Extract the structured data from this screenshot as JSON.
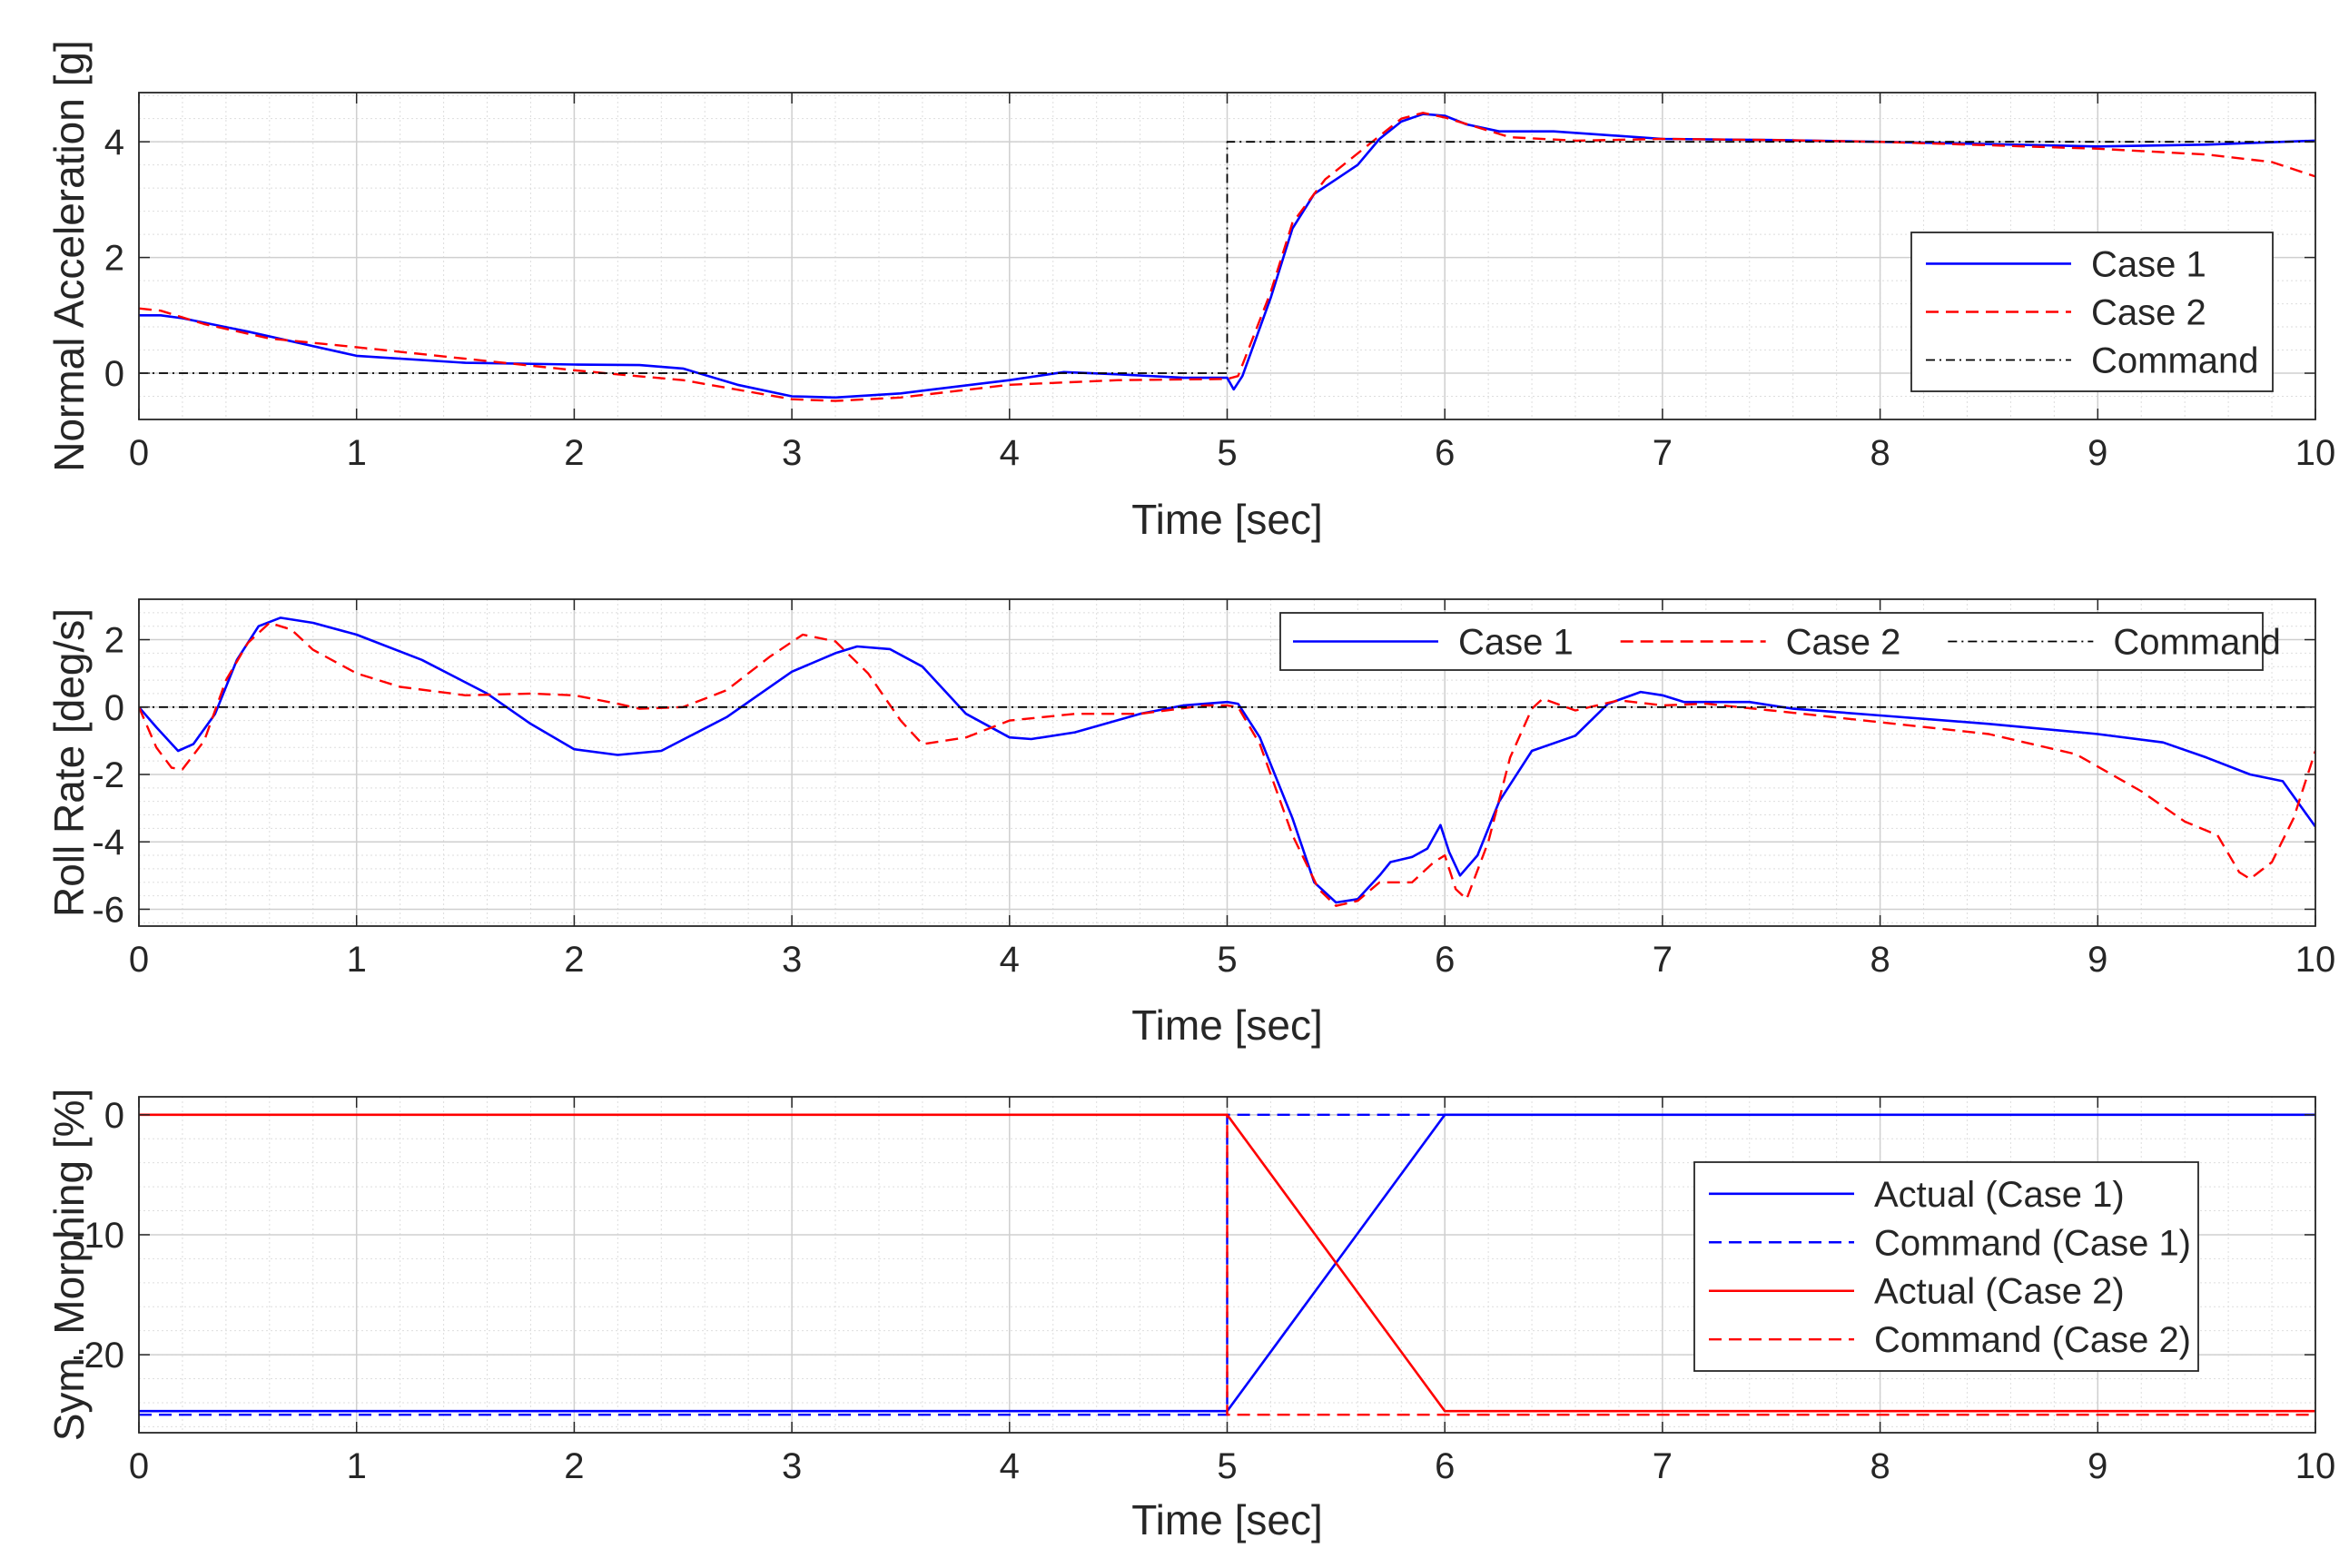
{
  "chart_data": [
    {
      "type": "line",
      "xlabel": "Time [sec]",
      "ylabel": "Normal Acceleration [g]",
      "xlim": [
        0,
        10
      ],
      "ylim": [
        -0.8,
        4.85
      ],
      "xticks": [
        "0",
        "1",
        "2",
        "3",
        "4",
        "5",
        "6",
        "7",
        "8",
        "9",
        "10"
      ],
      "yticks": [
        "0",
        "2",
        "4"
      ],
      "ytick_values": [
        0,
        2,
        4
      ],
      "grid": true,
      "legend_position": "right",
      "legend_layout": "vertical",
      "series": [
        {
          "name": "Case 1",
          "color": "#0000ff",
          "style": "solid",
          "points": [
            [
              0,
              1
            ],
            [
              0.1,
              1
            ],
            [
              0.2,
              0.95
            ],
            [
              0.5,
              0.72
            ],
            [
              1,
              0.3
            ],
            [
              1.5,
              0.18
            ],
            [
              2,
              0.15
            ],
            [
              2.3,
              0.14
            ],
            [
              2.5,
              0.08
            ],
            [
              2.75,
              -0.2
            ],
            [
              3,
              -0.4
            ],
            [
              3.2,
              -0.42
            ],
            [
              3.5,
              -0.35
            ],
            [
              4,
              -0.12
            ],
            [
              4.25,
              0.02
            ],
            [
              4.5,
              -0.02
            ],
            [
              4.8,
              -0.08
            ],
            [
              5,
              -0.08
            ],
            [
              5.03,
              -0.28
            ],
            [
              5.07,
              -0.05
            ],
            [
              5.2,
              1.3
            ],
            [
              5.3,
              2.5
            ],
            [
              5.4,
              3.1
            ],
            [
              5.5,
              3.35
            ],
            [
              5.6,
              3.6
            ],
            [
              5.7,
              4.05
            ],
            [
              5.8,
              4.35
            ],
            [
              5.9,
              4.48
            ],
            [
              6,
              4.45
            ],
            [
              6.1,
              4.3
            ],
            [
              6.25,
              4.18
            ],
            [
              6.5,
              4.18
            ],
            [
              7,
              4.05
            ],
            [
              7.5,
              4.03
            ],
            [
              8,
              4.0
            ],
            [
              9,
              3.92
            ],
            [
              9.5,
              3.95
            ],
            [
              10,
              4.02
            ]
          ]
        },
        {
          "name": "Case 2",
          "color": "#ff0000",
          "style": "dashed",
          "points": [
            [
              0,
              1.12
            ],
            [
              0.1,
              1.08
            ],
            [
              0.3,
              0.85
            ],
            [
              0.6,
              0.6
            ],
            [
              1,
              0.45
            ],
            [
              1.5,
              0.25
            ],
            [
              2,
              0.05
            ],
            [
              2.2,
              -0.02
            ],
            [
              2.5,
              -0.12
            ],
            [
              3,
              -0.45
            ],
            [
              3.2,
              -0.48
            ],
            [
              3.5,
              -0.42
            ],
            [
              4,
              -0.2
            ],
            [
              4.5,
              -0.12
            ],
            [
              5,
              -0.1
            ],
            [
              5.05,
              -0.05
            ],
            [
              5.2,
              1.4
            ],
            [
              5.3,
              2.6
            ],
            [
              5.45,
              3.35
            ],
            [
              5.6,
              3.8
            ],
            [
              5.8,
              4.4
            ],
            [
              5.9,
              4.5
            ],
            [
              6,
              4.42
            ],
            [
              6.3,
              4.08
            ],
            [
              6.6,
              4.02
            ],
            [
              7,
              4.05
            ],
            [
              7.5,
              4.03
            ],
            [
              8,
              4.0
            ],
            [
              9,
              3.88
            ],
            [
              9.5,
              3.78
            ],
            [
              9.8,
              3.65
            ],
            [
              10,
              3.4
            ]
          ]
        },
        {
          "name": "Command",
          "color": "#000000",
          "style": "dashdot",
          "points": [
            [
              0,
              0
            ],
            [
              5,
              0
            ],
            [
              5,
              4
            ],
            [
              10,
              4
            ]
          ]
        }
      ]
    },
    {
      "type": "line",
      "xlabel": "Time [sec]",
      "ylabel": "Roll Rate [deg/s]",
      "xlim": [
        0,
        10
      ],
      "ylim": [
        -6.5,
        3.2
      ],
      "xticks": [
        "0",
        "1",
        "2",
        "3",
        "4",
        "5",
        "6",
        "7",
        "8",
        "9",
        "10"
      ],
      "yticks": [
        "2",
        "0",
        "-2",
        "-4",
        "-6"
      ],
      "ytick_values": [
        2,
        0,
        -2,
        -4,
        -6
      ],
      "grid": true,
      "legend_position": "top-right",
      "legend_layout": "horizontal",
      "series": [
        {
          "name": "Case 1",
          "color": "#0000ff",
          "style": "solid",
          "points": [
            [
              0,
              0
            ],
            [
              0.08,
              -0.6
            ],
            [
              0.18,
              -1.3
            ],
            [
              0.25,
              -1.1
            ],
            [
              0.35,
              -0.2
            ],
            [
              0.45,
              1.4
            ],
            [
              0.55,
              2.4
            ],
            [
              0.65,
              2.65
            ],
            [
              0.8,
              2.5
            ],
            [
              1,
              2.15
            ],
            [
              1.3,
              1.4
            ],
            [
              1.6,
              0.4
            ],
            [
              1.8,
              -0.5
            ],
            [
              2,
              -1.25
            ],
            [
              2.2,
              -1.42
            ],
            [
              2.4,
              -1.3
            ],
            [
              2.7,
              -0.3
            ],
            [
              3,
              1.05
            ],
            [
              3.2,
              1.6
            ],
            [
              3.3,
              1.8
            ],
            [
              3.45,
              1.72
            ],
            [
              3.6,
              1.2
            ],
            [
              3.8,
              -0.2
            ],
            [
              4,
              -0.9
            ],
            [
              4.1,
              -0.95
            ],
            [
              4.3,
              -0.75
            ],
            [
              4.6,
              -0.2
            ],
            [
              4.8,
              0.05
            ],
            [
              5,
              0.15
            ],
            [
              5.05,
              0.1
            ],
            [
              5.15,
              -0.9
            ],
            [
              5.3,
              -3.3
            ],
            [
              5.4,
              -5.2
            ],
            [
              5.5,
              -5.8
            ],
            [
              5.6,
              -5.7
            ],
            [
              5.7,
              -5.0
            ],
            [
              5.75,
              -4.6
            ],
            [
              5.85,
              -4.45
            ],
            [
              5.92,
              -4.2
            ],
            [
              5.98,
              -3.5
            ],
            [
              6.02,
              -4.3
            ],
            [
              6.07,
              -5.0
            ],
            [
              6.15,
              -4.4
            ],
            [
              6.25,
              -2.8
            ],
            [
              6.4,
              -1.3
            ],
            [
              6.6,
              -0.85
            ],
            [
              6.75,
              0.1
            ],
            [
              6.9,
              0.45
            ],
            [
              7,
              0.35
            ],
            [
              7.1,
              0.15
            ],
            [
              7.4,
              0.15
            ],
            [
              7.6,
              -0.05
            ],
            [
              8,
              -0.25
            ],
            [
              8.5,
              -0.5
            ],
            [
              9,
              -0.8
            ],
            [
              9.3,
              -1.05
            ],
            [
              9.5,
              -1.5
            ],
            [
              9.7,
              -2.0
            ],
            [
              9.85,
              -2.2
            ],
            [
              10,
              -3.55
            ]
          ]
        },
        {
          "name": "Case 2",
          "color": "#ff0000",
          "style": "dashed",
          "points": [
            [
              0,
              0
            ],
            [
              0.08,
              -1.2
            ],
            [
              0.15,
              -1.8
            ],
            [
              0.2,
              -1.85
            ],
            [
              0.3,
              -1.0
            ],
            [
              0.4,
              0.8
            ],
            [
              0.5,
              1.9
            ],
            [
              0.6,
              2.5
            ],
            [
              0.7,
              2.3
            ],
            [
              0.8,
              1.7
            ],
            [
              1,
              1.0
            ],
            [
              1.2,
              0.6
            ],
            [
              1.5,
              0.35
            ],
            [
              1.8,
              0.4
            ],
            [
              2,
              0.35
            ],
            [
              2.2,
              0.1
            ],
            [
              2.3,
              -0.05
            ],
            [
              2.5,
              0.0
            ],
            [
              2.7,
              0.5
            ],
            [
              2.9,
              1.5
            ],
            [
              3.05,
              2.15
            ],
            [
              3.2,
              1.95
            ],
            [
              3.35,
              1.0
            ],
            [
              3.5,
              -0.4
            ],
            [
              3.6,
              -1.1
            ],
            [
              3.8,
              -0.9
            ],
            [
              4,
              -0.4
            ],
            [
              4.3,
              -0.2
            ],
            [
              4.6,
              -0.2
            ],
            [
              4.9,
              0.05
            ],
            [
              5,
              0.05
            ],
            [
              5.05,
              0.0
            ],
            [
              5.15,
              -1.1
            ],
            [
              5.3,
              -3.8
            ],
            [
              5.42,
              -5.4
            ],
            [
              5.5,
              -5.9
            ],
            [
              5.6,
              -5.75
            ],
            [
              5.7,
              -5.2
            ],
            [
              5.85,
              -5.2
            ],
            [
              5.95,
              -4.6
            ],
            [
              6.0,
              -4.4
            ],
            [
              6.05,
              -5.4
            ],
            [
              6.1,
              -5.7
            ],
            [
              6.2,
              -4.0
            ],
            [
              6.3,
              -1.5
            ],
            [
              6.4,
              -0.05
            ],
            [
              6.45,
              0.25
            ],
            [
              6.6,
              -0.1
            ],
            [
              6.8,
              0.2
            ],
            [
              7,
              0.05
            ],
            [
              7.2,
              0.1
            ],
            [
              7.5,
              -0.1
            ],
            [
              8,
              -0.45
            ],
            [
              8.5,
              -0.8
            ],
            [
              8.9,
              -1.4
            ],
            [
              9.2,
              -2.5
            ],
            [
              9.4,
              -3.4
            ],
            [
              9.55,
              -3.8
            ],
            [
              9.65,
              -4.9
            ],
            [
              9.7,
              -5.1
            ],
            [
              9.8,
              -4.6
            ],
            [
              9.9,
              -3.3
            ],
            [
              10,
              -1.3
            ]
          ]
        },
        {
          "name": "Command",
          "color": "#000000",
          "style": "dashdot",
          "points": [
            [
              0,
              0
            ],
            [
              10,
              0
            ]
          ]
        }
      ]
    },
    {
      "type": "line",
      "xlabel": "Time [sec]",
      "ylabel": "Sym. Morphing [%]",
      "xlim": [
        0,
        10
      ],
      "ylim": [
        -26.5,
        1.5
      ],
      "xticks": [
        "0",
        "1",
        "2",
        "3",
        "4",
        "5",
        "6",
        "7",
        "8",
        "9",
        "10"
      ],
      "yticks": [
        "0",
        "-10",
        "-20"
      ],
      "ytick_values": [
        0,
        -10,
        -20
      ],
      "grid": true,
      "legend_position": "right",
      "legend_layout": "vertical",
      "series": [
        {
          "name": "Actual (Case 1)",
          "color": "#0000ff",
          "style": "solid",
          "points": [
            [
              0,
              -24.7
            ],
            [
              5,
              -24.7
            ],
            [
              6,
              0
            ],
            [
              10,
              0
            ]
          ]
        },
        {
          "name": "Command (Case 1)",
          "color": "#0000ff",
          "style": "dashed",
          "points": [
            [
              0,
              -25
            ],
            [
              5,
              -25
            ],
            [
              5,
              0
            ],
            [
              10,
              0
            ]
          ]
        },
        {
          "name": "Actual (Case 2)",
          "color": "#ff0000",
          "style": "solid",
          "points": [
            [
              0,
              0
            ],
            [
              5,
              0
            ],
            [
              6,
              -24.7
            ],
            [
              10,
              -24.7
            ]
          ]
        },
        {
          "name": "Command (Case 2)",
          "color": "#ff0000",
          "style": "dashed",
          "points": [
            [
              0,
              0
            ],
            [
              5,
              0
            ],
            [
              5,
              -25
            ],
            [
              10,
              -25
            ]
          ]
        }
      ]
    }
  ]
}
